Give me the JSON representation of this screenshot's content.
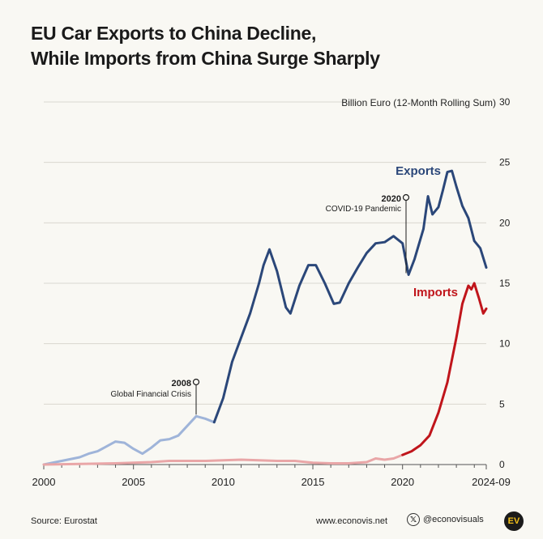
{
  "title": {
    "line1": "EU Car Exports to China Decline,",
    "line2": "While Imports from China Surge Sharply"
  },
  "footer": {
    "source": "Source: Eurostat",
    "site": "www.econovis.net",
    "social": "@econovisuals",
    "logo_text": "EV",
    "x_icon": "x-logo-icon"
  },
  "colors": {
    "exports": "#2b4779",
    "exports_early": "#9fb4d9",
    "imports": "#c0151b",
    "imports_early": "#e9a6a7",
    "grid": "#d9d7d0",
    "background": "#f9f8f3"
  },
  "chart_data": {
    "type": "line",
    "title": "EU Car Exports to China Decline, While Imports from China Surge Sharply",
    "ylabel": "Billion Euro (12-Month Rolling Sum)",
    "xlabel": "",
    "ylim": [
      0,
      30
    ],
    "xlim": [
      "2000-01",
      "2024-09"
    ],
    "y_ticks": [
      0,
      5,
      10,
      15,
      20,
      25,
      30
    ],
    "x_ticks": [
      "2000",
      "2005",
      "2010",
      "2015",
      "2020",
      "2024-09"
    ],
    "grid": true,
    "series": [
      {
        "name": "Exports",
        "points": [
          [
            "2000-01",
            0.0
          ],
          [
            "2001-01",
            0.3
          ],
          [
            "2002-01",
            0.6
          ],
          [
            "2002-07",
            0.9
          ],
          [
            "2003-01",
            1.1
          ],
          [
            "2003-07",
            1.5
          ],
          [
            "2004-01",
            1.9
          ],
          [
            "2004-07",
            1.8
          ],
          [
            "2005-01",
            1.3
          ],
          [
            "2005-07",
            0.9
          ],
          [
            "2006-01",
            1.4
          ],
          [
            "2006-07",
            2.0
          ],
          [
            "2007-01",
            2.1
          ],
          [
            "2007-07",
            2.4
          ],
          [
            "2008-01",
            3.2
          ],
          [
            "2008-07",
            4.0
          ],
          [
            "2009-01",
            3.8
          ],
          [
            "2009-07",
            3.5
          ],
          [
            "2010-01",
            5.5
          ],
          [
            "2010-07",
            8.5
          ],
          [
            "2011-01",
            10.5
          ],
          [
            "2011-07",
            12.5
          ],
          [
            "2012-01",
            15.0
          ],
          [
            "2012-04",
            16.5
          ],
          [
            "2012-08",
            17.8
          ],
          [
            "2013-01",
            16.0
          ],
          [
            "2013-07",
            13.0
          ],
          [
            "2013-10",
            12.5
          ],
          [
            "2014-04",
            14.8
          ],
          [
            "2014-10",
            16.5
          ],
          [
            "2015-03",
            16.5
          ],
          [
            "2015-09",
            15.0
          ],
          [
            "2016-03",
            13.3
          ],
          [
            "2016-07",
            13.4
          ],
          [
            "2017-01",
            15.0
          ],
          [
            "2017-07",
            16.3
          ],
          [
            "2018-01",
            17.5
          ],
          [
            "2018-07",
            18.3
          ],
          [
            "2019-01",
            18.4
          ],
          [
            "2019-07",
            18.9
          ],
          [
            "2020-01",
            18.3
          ],
          [
            "2020-05",
            15.7
          ],
          [
            "2020-09",
            17.0
          ],
          [
            "2021-03",
            19.5
          ],
          [
            "2021-06",
            22.2
          ],
          [
            "2021-09",
            20.7
          ],
          [
            "2022-01",
            21.3
          ],
          [
            "2022-04",
            22.7
          ],
          [
            "2022-07",
            24.2
          ],
          [
            "2022-10",
            24.3
          ],
          [
            "2023-01",
            23.0
          ],
          [
            "2023-05",
            21.4
          ],
          [
            "2023-09",
            20.4
          ],
          [
            "2024-01",
            18.5
          ],
          [
            "2024-05",
            17.9
          ],
          [
            "2024-09",
            16.3
          ]
        ]
      },
      {
        "name": "Imports",
        "points": [
          [
            "2000-01",
            0.0
          ],
          [
            "2002-01",
            0.05
          ],
          [
            "2004-01",
            0.1
          ],
          [
            "2006-01",
            0.2
          ],
          [
            "2007-01",
            0.3
          ],
          [
            "2008-01",
            0.3
          ],
          [
            "2009-01",
            0.3
          ],
          [
            "2010-01",
            0.35
          ],
          [
            "2011-01",
            0.4
          ],
          [
            "2012-01",
            0.35
          ],
          [
            "2013-01",
            0.3
          ],
          [
            "2014-01",
            0.3
          ],
          [
            "2015-01",
            0.15
          ],
          [
            "2016-01",
            0.1
          ],
          [
            "2017-01",
            0.1
          ],
          [
            "2018-01",
            0.2
          ],
          [
            "2018-07",
            0.5
          ],
          [
            "2019-01",
            0.4
          ],
          [
            "2019-07",
            0.5
          ],
          [
            "2020-01",
            0.8
          ],
          [
            "2020-07",
            1.1
          ],
          [
            "2021-01",
            1.6
          ],
          [
            "2021-07",
            2.4
          ],
          [
            "2022-01",
            4.3
          ],
          [
            "2022-07",
            6.8
          ],
          [
            "2023-01",
            10.5
          ],
          [
            "2023-05",
            13.3
          ],
          [
            "2023-09",
            14.8
          ],
          [
            "2023-11",
            14.5
          ],
          [
            "2024-01",
            15.0
          ],
          [
            "2024-04",
            13.8
          ],
          [
            "2024-07",
            12.5
          ],
          [
            "2024-09",
            12.9
          ]
        ]
      }
    ],
    "annotations": [
      {
        "year": "2008",
        "text": "Global Financial Crisis",
        "x": "2008-07",
        "y": 4.0
      },
      {
        "year": "2020",
        "text": "COVID-19 Pandemic",
        "x": "2020-05",
        "y": 15.7
      }
    ]
  }
}
